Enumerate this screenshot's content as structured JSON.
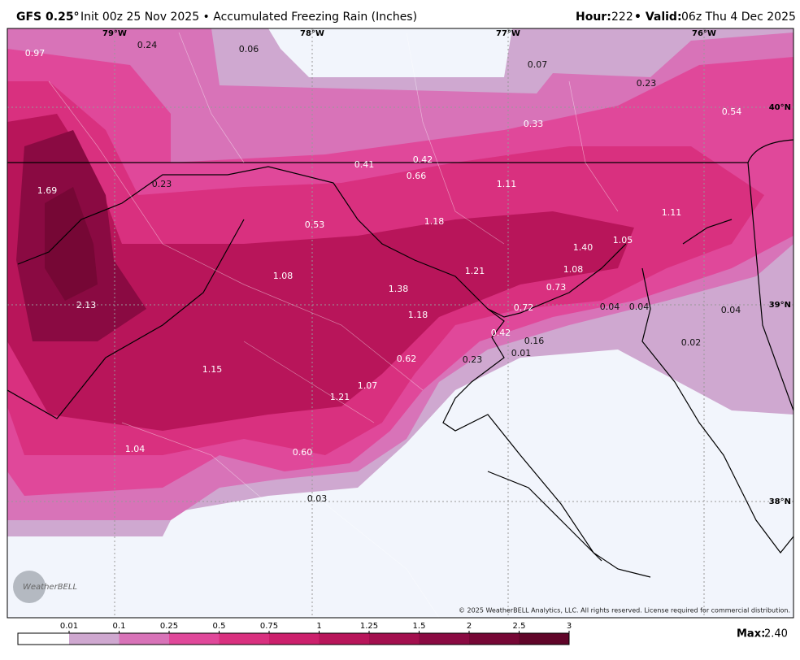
{
  "header": {
    "model": "GFS 0.25°",
    "subtitle": "Init 00z 25 Nov 2025 • Accumulated Freezing Rain (Inches)",
    "hour_label": "Hour:",
    "hour": "222",
    "valid_label": "• Valid:",
    "valid": "06z Thu 4 Dec 2025"
  },
  "map": {
    "lon_labels": [
      "79°W",
      "78°W",
      "77°W",
      "76°W"
    ],
    "lat_labels": [
      "40°N",
      "39°N",
      "38°N"
    ],
    "values": [
      "0.97",
      "0.24",
      "0.06",
      "0.07",
      "0.23",
      "0.54",
      "0.33",
      "0.42",
      "0.41",
      "0.66",
      "1.11",
      "0.23",
      "1.69",
      "1.18",
      "0.53",
      "1.11",
      "1.05",
      "1.40",
      "1.21",
      "1.08",
      "1.08",
      "1.38",
      "0.73",
      "2.13",
      "0.72",
      "0.04",
      "0.04",
      "0.04",
      "1.18",
      "0.42",
      "0.16",
      "0.02",
      "0.01",
      "0.62",
      "0.23",
      "1.15",
      "1.07",
      "1.21",
      "1.04",
      "0.60",
      "0.03"
    ],
    "logo": "WeatherBELL",
    "copyright": "© 2025 WeatherBELL Analytics, LLC. All rights reserved. License required for commercial distribution."
  },
  "colorbar": {
    "ticks": [
      0.01,
      0.1,
      0.25,
      0.5,
      0.75,
      1,
      1.25,
      1.5,
      2,
      2.5,
      3
    ],
    "colors": [
      "#ffffff",
      "#cfa8d0",
      "#d873b8",
      "#e0489a",
      "#d9307f",
      "#cc206c",
      "#b8155a",
      "#a30f4e",
      "#8a0a42",
      "#760735",
      "#600529"
    ]
  },
  "max": {
    "label": "Max:",
    "value": "2.40"
  }
}
